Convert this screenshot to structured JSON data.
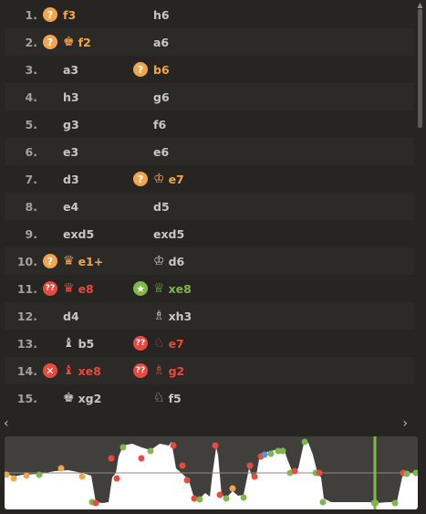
{
  "moves": [
    {
      "n": "1.",
      "w": {
        "san": "f3",
        "badge": "?",
        "btype": "inacc",
        "piece": "",
        "color": "orange"
      },
      "b": {
        "san": "h6",
        "badge": "",
        "btype": "",
        "piece": "",
        "color": "normal"
      }
    },
    {
      "n": "2.",
      "w": {
        "san": "f2",
        "badge": "?",
        "btype": "inacc",
        "piece": "♚",
        "color": "orange"
      },
      "b": {
        "san": "a6",
        "badge": "",
        "btype": "",
        "piece": "",
        "color": "normal"
      }
    },
    {
      "n": "3.",
      "w": {
        "san": "a3",
        "badge": "",
        "btype": "",
        "piece": "",
        "color": "normal"
      },
      "b": {
        "san": "b6",
        "badge": "?",
        "btype": "inacc",
        "piece": "",
        "color": "orange"
      }
    },
    {
      "n": "4.",
      "w": {
        "san": "h3",
        "badge": "",
        "btype": "",
        "piece": "",
        "color": "normal"
      },
      "b": {
        "san": "g6",
        "badge": "",
        "btype": "",
        "piece": "",
        "color": "normal"
      }
    },
    {
      "n": "5.",
      "w": {
        "san": "g3",
        "badge": "",
        "btype": "",
        "piece": "",
        "color": "normal"
      },
      "b": {
        "san": "f6",
        "badge": "",
        "btype": "",
        "piece": "",
        "color": "normal"
      }
    },
    {
      "n": "6.",
      "w": {
        "san": "e3",
        "badge": "",
        "btype": "",
        "piece": "",
        "color": "normal"
      },
      "b": {
        "san": "e6",
        "badge": "",
        "btype": "",
        "piece": "",
        "color": "normal"
      }
    },
    {
      "n": "7.",
      "w": {
        "san": "d3",
        "badge": "",
        "btype": "",
        "piece": "",
        "color": "normal"
      },
      "b": {
        "san": "e7",
        "badge": "?",
        "btype": "inacc",
        "piece": "♔",
        "color": "orange"
      }
    },
    {
      "n": "8.",
      "w": {
        "san": "e4",
        "badge": "",
        "btype": "",
        "piece": "",
        "color": "normal"
      },
      "b": {
        "san": "d5",
        "badge": "",
        "btype": "",
        "piece": "",
        "color": "normal"
      }
    },
    {
      "n": "9.",
      "w": {
        "san": "exd5",
        "badge": "",
        "btype": "",
        "piece": "",
        "color": "normal"
      },
      "b": {
        "san": "exd5",
        "badge": "",
        "btype": "",
        "piece": "",
        "color": "normal"
      }
    },
    {
      "n": "10.",
      "w": {
        "san": "e1+",
        "badge": "?",
        "btype": "inacc",
        "piece": "♛",
        "color": "orange"
      },
      "b": {
        "san": "d6",
        "badge": "",
        "btype": "",
        "piece": "♔",
        "color": "normal"
      }
    },
    {
      "n": "11.",
      "w": {
        "san": "e8",
        "badge": "??",
        "btype": "blunder",
        "piece": "♛",
        "color": "red"
      },
      "b": {
        "san": "xe8",
        "badge": "★",
        "btype": "brilliant",
        "piece": "♕",
        "color": "green"
      }
    },
    {
      "n": "12.",
      "w": {
        "san": "d4",
        "badge": "",
        "btype": "",
        "piece": "",
        "color": "normal"
      },
      "b": {
        "san": "xh3",
        "badge": "",
        "btype": "",
        "piece": "♗",
        "color": "normal"
      }
    },
    {
      "n": "13.",
      "w": {
        "san": "b5",
        "badge": "",
        "btype": "",
        "piece": "♝",
        "color": "normal"
      },
      "b": {
        "san": "e7",
        "badge": "??",
        "btype": "blunder",
        "piece": "♘",
        "color": "red"
      }
    },
    {
      "n": "14.",
      "w": {
        "san": "xe8",
        "badge": "✕",
        "btype": "miss",
        "piece": "♝",
        "color": "red"
      },
      "b": {
        "san": "g2",
        "badge": "??",
        "btype": "blunder",
        "piece": "♗",
        "color": "red"
      }
    },
    {
      "n": "15.",
      "w": {
        "san": "xg2",
        "badge": "",
        "btype": "",
        "piece": "♚",
        "color": "normal"
      },
      "b": {
        "san": "f5",
        "badge": "",
        "btype": "",
        "piece": "♘",
        "color": "normal"
      }
    }
  ],
  "scroll": {
    "up": "▲",
    "left": "‹",
    "right": "›"
  },
  "colors": {
    "bg": "#262522",
    "alt_row": "#2b2a27",
    "orange": "#f3a54c",
    "red": "#e84a3f",
    "green": "#81b64c",
    "graph_bg": "#403f3c"
  }
}
